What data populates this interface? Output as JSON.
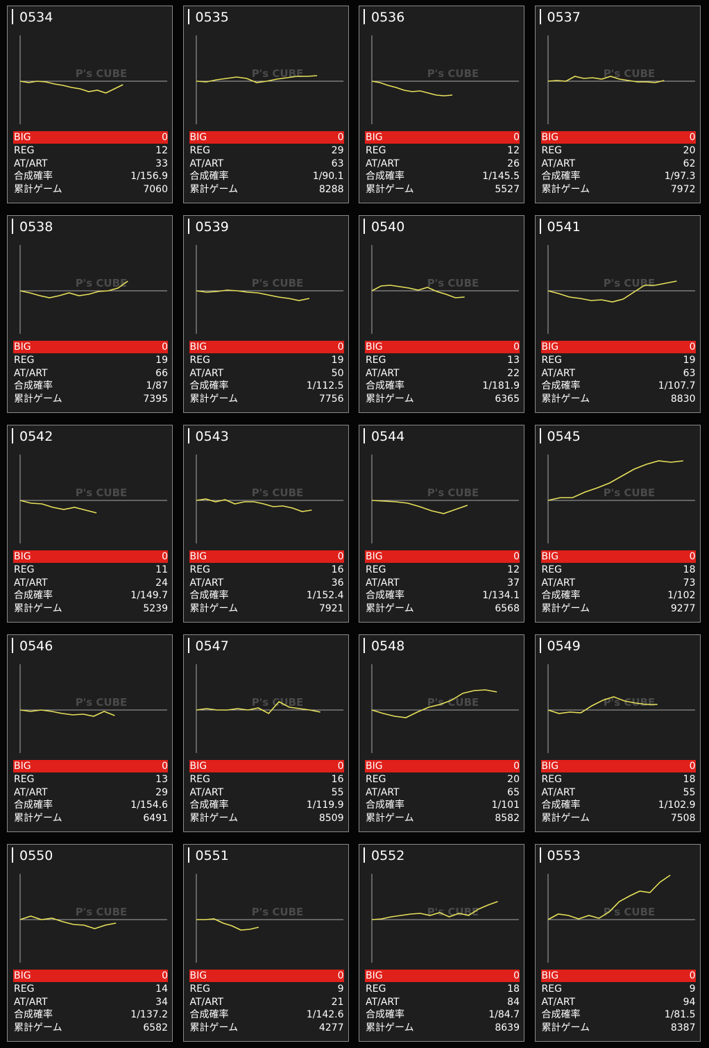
{
  "labels": [
    "BIG",
    "REG",
    "AT/ART",
    "合成確率",
    "累計ゲーム"
  ],
  "watermark": "P's CUBE",
  "cards": [
    {
      "id": "0534",
      "big": 0,
      "reg": 12,
      "at": 33,
      "rate": "1/156.9",
      "games": 7060,
      "graph": [
        0,
        -2,
        0,
        -1,
        -4,
        -6,
        -9,
        -11,
        -15,
        -13,
        -17,
        -11,
        -5
      ]
    },
    {
      "id": "0535",
      "big": 0,
      "reg": 29,
      "at": 63,
      "rate": "1/90.1",
      "games": 8288,
      "graph": [
        0,
        -1,
        2,
        4,
        6,
        4,
        -2,
        0,
        3,
        5,
        7,
        7,
        8
      ]
    },
    {
      "id": "0536",
      "big": 0,
      "reg": 12,
      "at": 26,
      "rate": "1/145.5",
      "games": 5527,
      "graph": [
        0,
        -2,
        -6,
        -9,
        -13,
        -15,
        -14,
        -17,
        -20,
        -21,
        -20
      ]
    },
    {
      "id": "0537",
      "big": 0,
      "reg": 20,
      "at": 62,
      "rate": "1/97.3",
      "games": 7972,
      "graph": [
        0,
        1,
        0,
        7,
        4,
        5,
        3,
        7,
        3,
        1,
        -1,
        -1,
        -2,
        1
      ]
    },
    {
      "id": "0538",
      "big": 0,
      "reg": 19,
      "at": 66,
      "rate": "1/87",
      "games": 7395,
      "graph": [
        0,
        -3,
        -7,
        -10,
        -7,
        -3,
        -7,
        -5,
        -1,
        0,
        4,
        14
      ]
    },
    {
      "id": "0539",
      "big": 0,
      "reg": 19,
      "at": 50,
      "rate": "1/112.5",
      "games": 7756,
      "graph": [
        0,
        -2,
        -1,
        1,
        0,
        -2,
        -3,
        -6,
        -9,
        -11,
        -14,
        -11
      ]
    },
    {
      "id": "0540",
      "big": 0,
      "reg": 13,
      "at": 22,
      "rate": "1/181.9",
      "games": 6365,
      "graph": [
        0,
        7,
        8,
        6,
        4,
        1,
        5,
        -1,
        -5,
        -10,
        -9
      ]
    },
    {
      "id": "0541",
      "big": 0,
      "reg": 19,
      "at": 63,
      "rate": "1/107.7",
      "games": 8830,
      "graph": [
        0,
        -4,
        -9,
        -11,
        -14,
        -13,
        -16,
        -12,
        -2,
        8,
        8,
        11,
        14
      ]
    },
    {
      "id": "0542",
      "big": 0,
      "reg": 11,
      "at": 24,
      "rate": "1/149.7",
      "games": 5239,
      "graph": [
        0,
        -4,
        -5,
        -10,
        -13,
        -10,
        -14,
        -18
      ]
    },
    {
      "id": "0543",
      "big": 0,
      "reg": 16,
      "at": 36,
      "rate": "1/152.4",
      "games": 7921,
      "graph": [
        0,
        2,
        -2,
        1,
        -5,
        -2,
        -2,
        -5,
        -9,
        -8,
        -11,
        -16,
        -14
      ]
    },
    {
      "id": "0544",
      "big": 0,
      "reg": 12,
      "at": 37,
      "rate": "1/134.1",
      "games": 6568,
      "graph": [
        0,
        -1,
        -2,
        -4,
        -9,
        -15,
        -19,
        -13,
        -7
      ]
    },
    {
      "id": "0545",
      "big": 0,
      "reg": 18,
      "at": 73,
      "rate": "1/102",
      "games": 9277,
      "graph": [
        0,
        4,
        4,
        12,
        18,
        25,
        35,
        45,
        52,
        57,
        55,
        57
      ]
    },
    {
      "id": "0546",
      "big": 0,
      "reg": 13,
      "at": 29,
      "rate": "1/154.6",
      "games": 6491,
      "graph": [
        0,
        -2,
        0,
        -2,
        -5,
        -7,
        -6,
        -9,
        -2,
        -8
      ]
    },
    {
      "id": "0547",
      "big": 0,
      "reg": 16,
      "at": 55,
      "rate": "1/119.9",
      "games": 8509,
      "graph": [
        0,
        2,
        0,
        0,
        2,
        0,
        3,
        -5,
        12,
        4,
        2,
        0,
        -3
      ]
    },
    {
      "id": "0548",
      "big": 0,
      "reg": 20,
      "at": 65,
      "rate": "1/101",
      "games": 8582,
      "graph": [
        0,
        -5,
        -9,
        -11,
        -3,
        4,
        8,
        14,
        24,
        28,
        29,
        26
      ]
    },
    {
      "id": "0549",
      "big": 0,
      "reg": 18,
      "at": 55,
      "rate": "1/102.9",
      "games": 7508,
      "graph": [
        0,
        -5,
        -3,
        -4,
        6,
        14,
        19,
        13,
        10,
        8,
        8
      ]
    },
    {
      "id": "0550",
      "big": 0,
      "reg": 14,
      "at": 34,
      "rate": "1/137.2",
      "games": 6582,
      "graph": [
        0,
        5,
        0,
        2,
        -3,
        -7,
        -8,
        -13,
        -8,
        -5
      ]
    },
    {
      "id": "0551",
      "big": 0,
      "reg": 9,
      "at": 21,
      "rate": "1/142.6",
      "games": 4277,
      "graph": [
        0,
        0,
        1,
        -5,
        -9,
        -15,
        -14,
        -11
      ]
    },
    {
      "id": "0552",
      "big": 0,
      "reg": 18,
      "at": 84,
      "rate": "1/84.7",
      "games": 8639,
      "graph": [
        0,
        1,
        4,
        6,
        8,
        9,
        6,
        10,
        4,
        9,
        6,
        15,
        21,
        26
      ]
    },
    {
      "id": "0553",
      "big": 0,
      "reg": 9,
      "at": 94,
      "rate": "1/81.5",
      "games": 8387,
      "graph": [
        0,
        8,
        6,
        1,
        6,
        2,
        11,
        26,
        34,
        41,
        39,
        54,
        64
      ]
    }
  ]
}
